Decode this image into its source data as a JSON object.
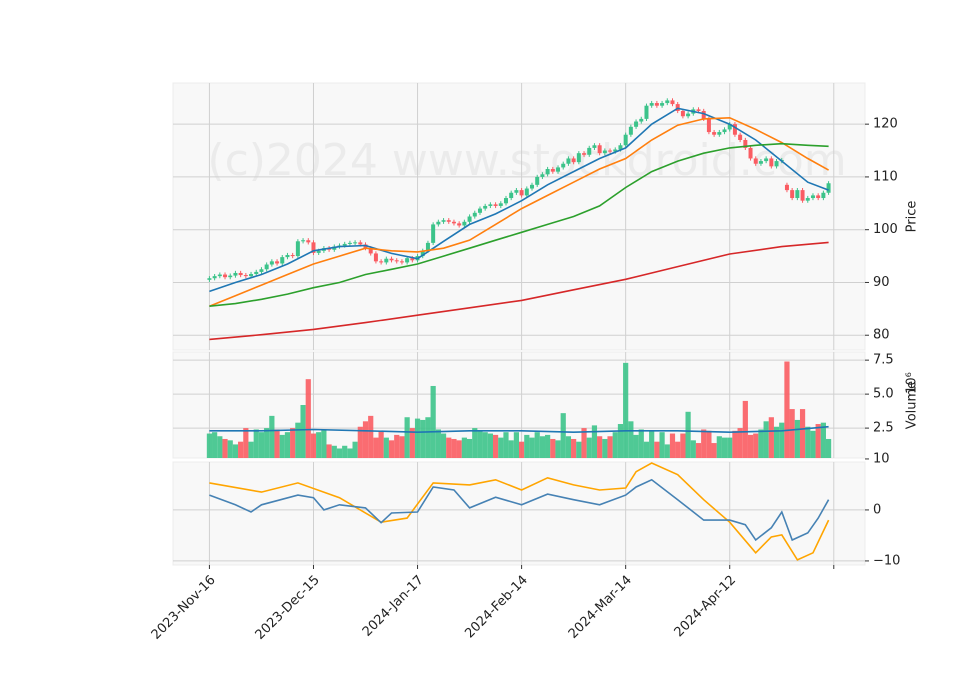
{
  "chart_data": [
    {
      "type": "candlestick",
      "ylabel": "Price",
      "watermark": "(c)2024 www.stockdroid.com",
      "xlim": [
        -7,
        126
      ],
      "ylim": [
        77.2,
        127.8
      ],
      "yticks": [
        80,
        90,
        100,
        110,
        120
      ],
      "grid": true,
      "up_color": "#3cc38a",
      "down_color": "#fa5c62",
      "open": [
        90.5,
        90.8,
        91.2,
        91.5,
        91.0,
        91.3,
        91.8,
        91.4,
        91.2,
        91.6,
        92.0,
        92.5,
        93.4,
        94.0,
        93.6,
        94.8,
        95.2,
        95.0,
        97.8,
        98.0,
        97.6,
        95.6,
        96.0,
        96.5,
        96.2,
        96.8,
        97.0,
        97.3,
        97.5,
        97.6,
        97.2,
        96.5,
        95.5,
        94.0,
        93.8,
        94.5,
        94.2,
        94.0,
        93.8,
        94.6,
        94.2,
        95.0,
        96.0,
        97.5,
        101.0,
        101.5,
        101.8,
        101.5,
        101.2,
        100.8,
        101.5,
        102.5,
        103.2,
        104.0,
        104.5,
        104.8,
        104.5,
        105.0,
        106.0,
        107.0,
        107.5,
        106.5,
        107.8,
        108.5,
        110.0,
        110.5,
        111.5,
        111.0,
        111.8,
        112.5,
        113.5,
        112.8,
        114.5,
        114.2,
        115.5,
        116.0,
        114.5,
        115.0,
        114.8,
        115.2,
        116.0,
        118.0,
        119.5,
        120.5,
        121.0,
        123.5,
        124.0,
        123.5,
        124.0,
        124.5,
        123.8,
        122.5,
        121.5,
        122.0,
        122.8,
        122.5,
        121.0,
        118.5,
        118.0,
        118.5,
        119.0,
        120.0,
        118.0,
        117.0,
        115.5,
        113.5,
        112.5,
        113.0,
        113.5,
        112.0,
        113.0,
        108.5,
        107.5,
        106.0,
        107.5,
        105.5,
        106.0,
        106.5,
        106.0,
        107.0
      ],
      "high": [
        91.2,
        91.6,
        91.9,
        91.9,
        91.7,
        92.2,
        92.2,
        91.8,
        92.0,
        92.4,
        92.9,
        93.8,
        94.4,
        94.4,
        95.2,
        95.6,
        95.6,
        98.2,
        98.4,
        98.4,
        98.0,
        96.4,
        96.9,
        96.9,
        97.2,
        97.4,
        97.7,
        97.9,
        98.0,
        98.0,
        97.6,
        96.9,
        95.9,
        94.4,
        94.9,
        94.9,
        94.6,
        94.4,
        95.0,
        95.0,
        95.4,
        96.4,
        97.9,
        101.4,
        101.9,
        102.2,
        102.2,
        101.9,
        101.6,
        101.9,
        102.9,
        103.6,
        104.4,
        104.9,
        105.2,
        105.2,
        105.4,
        106.4,
        107.4,
        107.9,
        107.9,
        108.2,
        108.9,
        110.4,
        110.9,
        111.9,
        111.9,
        112.2,
        112.9,
        113.9,
        113.9,
        114.9,
        114.9,
        115.9,
        116.4,
        116.4,
        115.4,
        115.4,
        115.6,
        116.4,
        118.4,
        119.9,
        120.9,
        121.4,
        123.9,
        124.4,
        124.4,
        124.4,
        124.9,
        124.9,
        124.2,
        122.9,
        122.4,
        123.2,
        123.2,
        122.9,
        121.4,
        118.9,
        118.9,
        119.4,
        120.4,
        120.4,
        118.4,
        117.4,
        115.9,
        113.9,
        113.4,
        113.9,
        113.9,
        113.4,
        113.6,
        108.9,
        107.9,
        107.9,
        107.9,
        106.4,
        106.9,
        106.9,
        107.4,
        109.2
      ],
      "low": [
        90.1,
        90.4,
        90.8,
        90.6,
        90.6,
        90.9,
        91.0,
        90.8,
        90.8,
        91.2,
        91.6,
        92.1,
        93.0,
        93.2,
        93.2,
        94.4,
        94.6,
        94.6,
        97.4,
        97.2,
        95.2,
        95.2,
        95.6,
        95.8,
        95.8,
        96.4,
        96.6,
        96.9,
        97.1,
        96.8,
        96.1,
        95.1,
        93.6,
        93.4,
        93.4,
        93.8,
        93.6,
        93.4,
        93.4,
        93.8,
        93.8,
        94.6,
        95.6,
        97.1,
        100.6,
        101.1,
        101.1,
        100.8,
        100.4,
        100.4,
        101.1,
        102.1,
        102.8,
        103.6,
        104.1,
        104.1,
        104.1,
        104.6,
        105.6,
        106.6,
        106.1,
        106.1,
        107.4,
        108.1,
        109.6,
        110.1,
        110.6,
        110.6,
        111.4,
        112.1,
        112.4,
        112.4,
        113.8,
        113.8,
        115.1,
        114.1,
        114.1,
        114.4,
        114.4,
        114.8,
        115.6,
        117.6,
        119.1,
        120.1,
        120.6,
        123.1,
        123.1,
        123.1,
        123.6,
        123.4,
        122.1,
        121.1,
        121.1,
        121.6,
        122.1,
        120.6,
        118.1,
        117.6,
        117.6,
        118.1,
        118.6,
        117.6,
        116.6,
        115.1,
        113.1,
        112.1,
        112.1,
        112.6,
        111.6,
        111.6,
        112.6,
        107.1,
        105.6,
        105.6,
        105.1,
        105.1,
        105.6,
        105.6,
        105.6,
        106.6
      ],
      "close": [
        90.8,
        91.2,
        91.5,
        91.0,
        91.3,
        91.8,
        91.4,
        91.2,
        91.6,
        92.0,
        92.5,
        93.4,
        94.0,
        93.6,
        94.8,
        95.2,
        95.0,
        97.8,
        98.0,
        97.6,
        95.6,
        96.0,
        96.5,
        96.2,
        96.8,
        97.0,
        97.3,
        97.5,
        97.6,
        97.2,
        96.5,
        95.5,
        94.0,
        93.8,
        94.5,
        94.2,
        94.0,
        93.8,
        94.6,
        94.2,
        95.0,
        96.0,
        97.5,
        101.0,
        101.5,
        101.8,
        101.5,
        101.2,
        100.8,
        101.5,
        102.5,
        103.2,
        104.0,
        104.5,
        104.8,
        104.5,
        105.0,
        106.0,
        107.0,
        107.5,
        106.5,
        107.8,
        108.5,
        110.0,
        110.5,
        111.5,
        111.0,
        111.8,
        112.5,
        113.5,
        112.8,
        114.5,
        114.2,
        115.5,
        116.0,
        114.5,
        115.0,
        114.8,
        115.2,
        116.0,
        118.0,
        119.5,
        120.5,
        121.0,
        123.5,
        124.0,
        123.5,
        124.0,
        124.5,
        123.8,
        122.5,
        121.5,
        122.0,
        122.8,
        122.5,
        121.0,
        118.5,
        118.0,
        118.5,
        119.0,
        120.0,
        118.0,
        117.0,
        115.5,
        113.5,
        112.5,
        113.0,
        113.5,
        112.0,
        113.0,
        113.2,
        107.5,
        106.0,
        107.5,
        105.5,
        106.0,
        106.5,
        106.0,
        107.0,
        108.8
      ],
      "series": [
        {
          "color": "#1f77b4",
          "x": [
            0,
            5,
            10,
            15,
            20,
            25,
            30,
            35,
            40,
            45,
            50,
            55,
            60,
            65,
            70,
            75,
            80,
            85,
            90,
            95,
            100,
            105,
            110,
            115,
            119
          ],
          "values": [
            88.3,
            90.0,
            91.5,
            93.5,
            96.0,
            96.8,
            97.0,
            95.5,
            94.5,
            97.8,
            101.0,
            103.0,
            105.5,
            108.5,
            111.0,
            113.5,
            115.5,
            120.0,
            123.0,
            122.0,
            120.0,
            117.0,
            113.0,
            109.0,
            107.5
          ]
        },
        {
          "color": "#ff7f0e",
          "x": [
            0,
            5,
            10,
            15,
            20,
            25,
            30,
            35,
            40,
            45,
            50,
            55,
            60,
            65,
            70,
            75,
            80,
            85,
            90,
            95,
            100,
            105,
            110,
            115,
            119
          ],
          "values": [
            85.5,
            87.5,
            89.5,
            91.5,
            93.5,
            95.0,
            96.5,
            96.0,
            95.8,
            96.5,
            98.0,
            101.0,
            104.0,
            106.5,
            109.0,
            111.5,
            113.5,
            117.0,
            119.8,
            121.0,
            121.2,
            119.0,
            116.5,
            113.5,
            111.3
          ]
        },
        {
          "color": "#2ca02c",
          "x": [
            0,
            5,
            10,
            15,
            20,
            25,
            30,
            35,
            40,
            45,
            50,
            55,
            60,
            65,
            70,
            75,
            80,
            85,
            90,
            95,
            100,
            105,
            110,
            115,
            119
          ],
          "values": [
            85.5,
            86.0,
            86.8,
            87.8,
            89.0,
            90.0,
            91.5,
            92.5,
            93.5,
            95.0,
            96.5,
            98.0,
            99.5,
            101.0,
            102.5,
            104.5,
            108.0,
            111.0,
            113.0,
            114.5,
            115.5,
            116.0,
            116.3,
            116.0,
            115.8
          ]
        },
        {
          "color": "#d62728",
          "x": [
            0,
            10,
            20,
            30,
            40,
            50,
            60,
            70,
            80,
            90,
            100,
            110,
            119
          ],
          "values": [
            79.2,
            80.1,
            81.1,
            82.4,
            83.8,
            85.2,
            86.6,
            88.6,
            90.6,
            93.0,
            95.4,
            96.8,
            97.6
          ]
        }
      ]
    },
    {
      "type": "bar",
      "ylabel": "Volume",
      "scale_label": "10⁶",
      "xlim": [
        -7,
        126
      ],
      "ylim": [
        0.3,
        8.1
      ],
      "yticks": [
        2.5,
        {
          "value": 5,
          "label": "5.0"
        },
        7.5
      ],
      "grid": true,
      "values": [
        2.1,
        2.2,
        1.9,
        1.7,
        1.6,
        1.3,
        1.5,
        2.5,
        1.5,
        2.4,
        2.2,
        2.5,
        3.4,
        2.4,
        2.0,
        2.2,
        2.5,
        2.9,
        4.2,
        6.1,
        2.1,
        2.2,
        2.4,
        1.3,
        1.2,
        1.0,
        1.2,
        1.0,
        1.5,
        2.6,
        3.0,
        3.4,
        1.8,
        2.3,
        1.8,
        1.6,
        2.0,
        1.9,
        3.3,
        2.5,
        3.2,
        3.1,
        3.3,
        5.6,
        2.4,
        2.1,
        1.8,
        1.7,
        1.6,
        1.8,
        1.7,
        2.5,
        2.3,
        2.2,
        2.1,
        2.0,
        1.8,
        2.2,
        1.6,
        2.2,
        1.5,
        2.0,
        1.8,
        2.2,
        1.9,
        2.0,
        1.7,
        1.6,
        3.6,
        1.9,
        1.7,
        1.5,
        2.5,
        1.8,
        2.7,
        1.9,
        1.7,
        1.9,
        2.2,
        2.8,
        7.3,
        3.0,
        2.0,
        2.4,
        1.5,
        2.3,
        1.5,
        2.2,
        1.3,
        2.1,
        1.5,
        2.1,
        3.7,
        1.6,
        1.4,
        2.4,
        2.3,
        1.4,
        1.9,
        1.8,
        1.8,
        2.3,
        2.5,
        4.5,
        2.0,
        2.1,
        2.4,
        3.0,
        3.3,
        2.6,
        2.9,
        7.4,
        3.9,
        3.1,
        3.9,
        2.6,
        2.3,
        2.8,
        2.9,
        1.7
      ],
      "series": [
        {
          "color": "#1f77b4",
          "x": [
            0,
            10,
            20,
            30,
            40,
            50,
            60,
            70,
            80,
            90,
            100,
            110,
            119
          ],
          "values": [
            2.3,
            2.3,
            2.4,
            2.3,
            2.2,
            2.3,
            2.3,
            2.2,
            2.3,
            2.3,
            2.2,
            2.3,
            2.6
          ]
        }
      ]
    },
    {
      "type": "line",
      "xlim": [
        -7,
        126
      ],
      "ylim": [
        -10.8,
        9.4
      ],
      "yticks": [
        {
          "value": -10,
          "label": "−10"
        },
        0,
        10
      ],
      "grid": true,
      "xticks": [
        {
          "value": 0,
          "label": "2023-Nov-16"
        },
        {
          "value": 20,
          "label": "2023-Dec-15"
        },
        {
          "value": 40,
          "label": "2024-Jan-17"
        },
        {
          "value": 60,
          "label": "2024-Feb-14"
        },
        {
          "value": 80,
          "label": "2024-Mar-14"
        },
        {
          "value": 100,
          "label": "2024-Apr-12"
        },
        {
          "value": 120,
          "label": null
        }
      ],
      "series": [
        {
          "color": "#ffa500",
          "x": [
            0,
            10,
            17,
            25,
            33,
            38,
            43,
            50,
            55,
            60,
            65,
            70,
            75,
            80,
            82,
            85,
            90,
            95,
            100,
            105,
            108,
            110,
            113,
            116,
            119
          ],
          "values": [
            5.3,
            3.5,
            5.3,
            2.4,
            -2.4,
            -1.6,
            5.3,
            4.9,
            5.9,
            3.9,
            6.3,
            4.9,
            3.9,
            4.3,
            7.5,
            9.2,
            6.9,
            2.0,
            -2.4,
            -8.4,
            -5.3,
            -4.9,
            -9.8,
            -8.4,
            -2.0
          ]
        },
        {
          "color": "#4682b4",
          "x": [
            0,
            5,
            8,
            10,
            17,
            20,
            22,
            25,
            30,
            33,
            35,
            40,
            43,
            47,
            50,
            55,
            60,
            65,
            70,
            75,
            80,
            82,
            85,
            90,
            95,
            100,
            103,
            105,
            108,
            110,
            112,
            115,
            117,
            119
          ],
          "values": [
            2.9,
            1.0,
            -0.4,
            1.0,
            2.9,
            2.4,
            0,
            1.0,
            0.4,
            -2.5,
            -0.6,
            -0.4,
            4.5,
            3.9,
            0.4,
            2.5,
            1.0,
            3.1,
            2.0,
            1.0,
            2.9,
            4.5,
            5.9,
            2.0,
            -2.0,
            -2.0,
            -2.9,
            -5.9,
            -3.5,
            -0.4,
            -5.9,
            -4.5,
            -1.6,
            2.0
          ]
        }
      ]
    }
  ]
}
